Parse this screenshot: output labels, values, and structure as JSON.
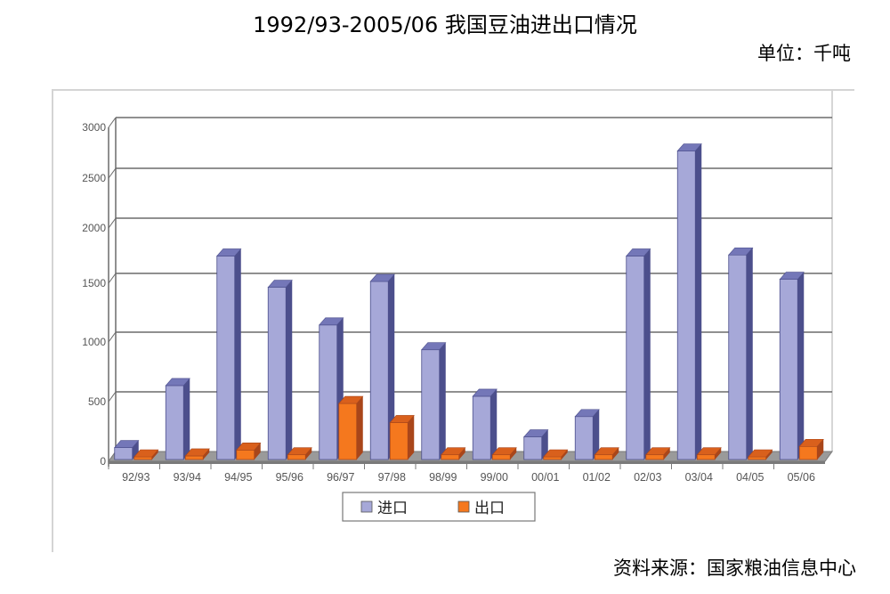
{
  "header": {
    "title": "1992/93-2005/06 我国豆油进出口情况",
    "unit": "单位：千吨"
  },
  "footer": {
    "source": "资料来源：国家粮油信息中心"
  },
  "colors": {
    "import_front": "#a6a8d8",
    "import_side": "#4c4f8c",
    "import_top": "#7477b8",
    "export_front": "#f5781e",
    "export_side": "#a9461a",
    "export_top": "#d9601c",
    "floor": "#9a9a9a",
    "grid": "#6b6b6b"
  },
  "legend": {
    "items": [
      {
        "label": "进口",
        "color": "#a6a8d8"
      },
      {
        "label": "出口",
        "color": "#f5781e"
      }
    ]
  },
  "chart_data": {
    "type": "bar",
    "title": "1992/93-2005/06 我国豆油进出口情况",
    "subtitle": "单位：千吨",
    "xlabel": "",
    "ylabel": "",
    "ylim": [
      0,
      3000
    ],
    "yticks": [
      0,
      500,
      1000,
      1500,
      2000,
      2500,
      3000
    ],
    "grid": true,
    "legend_position": "bottom",
    "style": "3d-clustered-column",
    "categories": [
      "92/93",
      "93/94",
      "94/95",
      "95/96",
      "96/97",
      "97/98",
      "98/99",
      "99/00",
      "00/01",
      "01/02",
      "02/03",
      "03/04",
      "04/05",
      "05/06"
    ],
    "series": [
      {
        "name": "进口",
        "values": [
          100,
          620,
          1730,
          1450,
          1130,
          1500,
          920,
          530,
          190,
          360,
          1730,
          2750,
          1740,
          1520
        ]
      },
      {
        "name": "出口",
        "values": [
          10,
          30,
          80,
          40,
          470,
          310,
          40,
          40,
          20,
          40,
          40,
          40,
          10,
          110
        ]
      }
    ],
    "annotations": [
      "资料来源：国家粮油信息中心"
    ]
  }
}
